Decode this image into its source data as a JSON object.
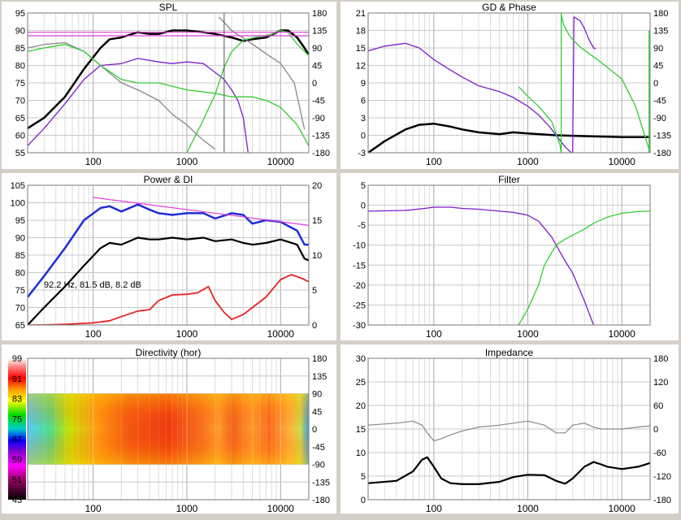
{
  "chart_data": [
    {
      "type": "line",
      "title": "SPL",
      "xscale": "log",
      "xlim": [
        20,
        20000
      ],
      "xticks": [
        "100",
        "1000",
        "10000"
      ],
      "ylim": [
        55,
        95
      ],
      "yticks": [
        "95",
        "90",
        "85",
        "80",
        "75",
        "70",
        "65",
        "60",
        "55"
      ],
      "y2lim": [
        -180,
        180
      ],
      "y2ticks": [
        "180",
        "135",
        "90",
        "45",
        "0",
        "-45",
        "-90",
        "-135",
        "-180"
      ],
      "cursor_x": 2500,
      "series": [
        {
          "color": "#000000",
          "width": 2.5,
          "axis": "y",
          "x": [
            20,
            30,
            50,
            80,
            120,
            150,
            200,
            300,
            400,
            500,
            700,
            1000,
            1500,
            2000,
            3000,
            4000,
            5000,
            7000,
            10000,
            12000,
            15000,
            18000,
            20000
          ],
          "y": [
            62,
            65,
            71,
            79,
            85,
            87.5,
            88,
            89.5,
            89,
            89,
            90,
            90,
            89.5,
            89,
            88,
            87,
            87.5,
            88,
            90,
            90,
            88,
            85,
            83
          ]
        },
        {
          "color": "#7b1fc9",
          "width": 1.3,
          "axis": "y",
          "x": [
            20,
            30,
            50,
            80,
            120,
            200,
            300,
            500,
            700,
            1000,
            1500,
            2000,
            2500,
            3000,
            3500,
            4000,
            4500
          ],
          "y": [
            57,
            62,
            69,
            76,
            80,
            80.5,
            82,
            81,
            80.5,
            81,
            80.5,
            78,
            76,
            73,
            70,
            65,
            55
          ]
        },
        {
          "color": "#888888",
          "width": 1.3,
          "axis": "y",
          "x": [
            20,
            30,
            50,
            80,
            120,
            200,
            300,
            500,
            700,
            1000,
            1300,
            1600,
            2000
          ],
          "y": [
            85,
            86,
            86.5,
            84,
            80,
            75,
            73,
            70,
            66,
            63,
            60,
            58,
            56
          ]
        },
        {
          "color": "#888888",
          "width": 1.3,
          "axis": "y2",
          "x": [
            2200,
            3000,
            5000,
            7000,
            10000,
            14000,
            18000
          ],
          "y": [
            170,
            135,
            100,
            75,
            50,
            0,
            -120
          ]
        },
        {
          "color": "#33cc33",
          "width": 1.3,
          "axis": "y",
          "x": [
            20,
            30,
            50,
            80,
            120,
            200,
            300,
            500,
            700,
            1000,
            2000,
            3000,
            5000,
            7000,
            10000,
            15000,
            20000
          ],
          "y": [
            84,
            85,
            86,
            84,
            80,
            76,
            75,
            75,
            74,
            73,
            72,
            71,
            71,
            70,
            68,
            63,
            57
          ]
        },
        {
          "color": "#33cc33",
          "width": 1.3,
          "axis": "y2",
          "x": [
            1000,
            1400,
            2000,
            2500,
            3000,
            4000,
            6000,
            8000,
            10000,
            12000,
            15000,
            20000
          ],
          "y": [
            -180,
            -110,
            -30,
            40,
            80,
            110,
            120,
            125,
            135,
            130,
            100,
            70
          ]
        },
        {
          "color": "#e23bd9",
          "width": 1.2,
          "axis": "y",
          "x": [
            20,
            20000
          ],
          "y": [
            89.5,
            89.5
          ]
        },
        {
          "color": "#e23bd9",
          "width": 1.2,
          "axis": "y",
          "x": [
            20,
            20000
          ],
          "y": [
            88.5,
            88.5
          ]
        }
      ]
    },
    {
      "type": "line",
      "title": "GD & Phase",
      "xscale": "log",
      "xlim": [
        20,
        20000
      ],
      "xticks": [
        "100",
        "1000",
        "10000"
      ],
      "ylim": [
        -3,
        21
      ],
      "yticks": [
        "21",
        "18",
        "15",
        "12",
        "9",
        "6",
        "3",
        "0",
        "-3"
      ],
      "y2lim": [
        -180,
        180
      ],
      "y2ticks": [
        "180",
        "135",
        "90",
        "45",
        "0",
        "-45",
        "-90",
        "-135",
        "-180"
      ],
      "series": [
        {
          "color": "#000000",
          "width": 2.5,
          "axis": "y",
          "x": [
            20,
            30,
            50,
            70,
            100,
            150,
            200,
            300,
            500,
            700,
            1000,
            2000,
            5000,
            10000,
            20000
          ],
          "y": [
            -3,
            -1,
            1,
            1.8,
            2,
            1.5,
            1,
            0.5,
            0.2,
            0.5,
            0.3,
            0,
            -0.2,
            -0.3,
            -0.3
          ]
        },
        {
          "color": "#7b1fc9",
          "width": 1.3,
          "axis": "y",
          "x": [
            20,
            30,
            50,
            70,
            100,
            150,
            200,
            300,
            500,
            700,
            1000,
            1300,
            1700,
            2000,
            2500,
            2900
          ],
          "y": [
            14.5,
            15.3,
            15.8,
            15,
            13,
            11.2,
            10,
            8.5,
            7.5,
            6.5,
            5,
            3.5,
            1.5,
            0,
            -2,
            -3
          ]
        },
        {
          "color": "#7b1fc9",
          "width": 1.3,
          "axis": "y2",
          "x": [
            3000,
            3100,
            3600,
            4000,
            4500,
            5000,
            5300
          ],
          "y": [
            -180,
            170,
            160,
            140,
            110,
            90,
            88
          ]
        },
        {
          "color": "#33cc33",
          "width": 1.3,
          "axis": "y2",
          "x": [
            2270,
            2400,
            2800,
            3500,
            4500,
            5500,
            7000,
            10000,
            14000,
            20000
          ],
          "y": [
            175,
            150,
            120,
            95,
            75,
            60,
            40,
            10,
            -60,
            -180
          ]
        },
        {
          "color": "#33cc33",
          "width": 1.3,
          "axis": "y2",
          "x": [
            800,
            1000,
            1300,
            1800,
            2200,
            2260
          ],
          "y": [
            -10,
            -35,
            -60,
            -100,
            -160,
            -180
          ]
        },
        {
          "color": "#33cc33",
          "width": 1.3,
          "axis": "y2",
          "x": [
            2265,
            2265
          ],
          "y": [
            -180,
            180
          ]
        },
        {
          "color": "#33cc33",
          "width": 1.3,
          "axis": "y2",
          "x": [
            19500,
            19500
          ],
          "y": [
            -180,
            135
          ]
        }
      ]
    },
    {
      "type": "line",
      "title": "Power & DI",
      "xscale": "log",
      "xlim": [
        20,
        20000
      ],
      "xticks": [
        "100",
        "1000",
        "10000"
      ],
      "ylim": [
        65,
        105
      ],
      "yticks": [
        "105",
        "100",
        "95",
        "90",
        "85",
        "80",
        "75",
        "70",
        "65"
      ],
      "y2lim": [
        0,
        20
      ],
      "y2ticks": [
        "20",
        "15",
        "10",
        "5",
        "0"
      ],
      "annotation": "92.2 Hz, 81.5 dB, 8.2 dB",
      "series": [
        {
          "color": "#1f2dd6",
          "width": 2.5,
          "axis": "y",
          "x": [
            20,
            30,
            50,
            80,
            120,
            150,
            200,
            300,
            400,
            500,
            700,
            1000,
            1500,
            2000,
            3000,
            4000,
            5000,
            7000,
            10000,
            15000,
            18000,
            20000
          ],
          "y": [
            73,
            79,
            87,
            95,
            98.5,
            99,
            97.5,
            99.5,
            98,
            97,
            96.5,
            97,
            97,
            95.5,
            97,
            96.5,
            94,
            95,
            94.5,
            92,
            88,
            88
          ]
        },
        {
          "color": "#000000",
          "width": 2.2,
          "axis": "y",
          "x": [
            20,
            30,
            50,
            80,
            120,
            150,
            200,
            300,
            400,
            500,
            700,
            1000,
            1500,
            2000,
            3000,
            4000,
            5000,
            7000,
            10000,
            15000,
            18000,
            20000
          ],
          "y": [
            65,
            70,
            76,
            82,
            87,
            88.5,
            88,
            90,
            89.5,
            89.5,
            90,
            89.5,
            90,
            89,
            89.5,
            88.5,
            88,
            88.5,
            89.5,
            88,
            84,
            83.5
          ]
        },
        {
          "color": "#e82121",
          "width": 1.8,
          "axis": "y2",
          "x": [
            20,
            30,
            50,
            100,
            150,
            200,
            300,
            400,
            500,
            700,
            1000,
            1300,
            1700,
            2000,
            2500,
            3000,
            4000,
            5000,
            7000,
            10000,
            13000,
            16000,
            20000
          ],
          "y": [
            0,
            0,
            0.1,
            0.3,
            0.6,
            1.2,
            2,
            2.2,
            3.5,
            4.3,
            4.4,
            4.6,
            5.5,
            3.5,
            1.8,
            0.8,
            1.5,
            2.5,
            4,
            6.5,
            7.2,
            6.8,
            6.2
          ]
        },
        {
          "color": "#e23bd9",
          "width": 1.2,
          "axis": "y",
          "x": [
            100,
            20000
          ],
          "y": [
            101.5,
            93.5
          ]
        }
      ]
    },
    {
      "type": "line",
      "title": "Filter",
      "xscale": "log",
      "xlim": [
        20,
        20000
      ],
      "xticks": [
        "100",
        "1000",
        "10000"
      ],
      "ylim": [
        -30,
        5
      ],
      "yticks": [
        "5",
        "0",
        "-5",
        "-10",
        "-15",
        "-20",
        "-25",
        "-30"
      ],
      "series": [
        {
          "color": "#7b1fc9",
          "width": 1.3,
          "x": [
            20,
            50,
            80,
            100,
            150,
            200,
            300,
            500,
            700,
            1000,
            1300,
            1800,
            2500,
            3000,
            4000,
            5000
          ],
          "y": [
            -1.5,
            -1.3,
            -0.8,
            -0.5,
            -0.5,
            -0.8,
            -1,
            -1.5,
            -1.8,
            -2.5,
            -4,
            -8,
            -14,
            -17,
            -24,
            -30
          ]
        },
        {
          "color": "#33cc33",
          "width": 1.3,
          "x": [
            800,
            1000,
            1300,
            1500,
            2000,
            2500,
            3000,
            4000,
            5000,
            7000,
            10000,
            15000,
            20000
          ],
          "y": [
            -30,
            -26,
            -20,
            -15,
            -10,
            -8.5,
            -7.5,
            -6,
            -4.5,
            -3,
            -2,
            -1.6,
            -1.5
          ]
        }
      ]
    },
    {
      "type": "heatmap",
      "title": "Directivity (hor)",
      "xscale": "log",
      "xlim": [
        20,
        20000
      ],
      "xticks": [
        "100",
        "1000",
        "10000"
      ],
      "y2lim": [
        -180,
        180
      ],
      "y2ticks": [
        "180",
        "135",
        "90",
        "45",
        "0",
        "-45",
        "-90",
        "-135",
        "-180"
      ],
      "colorbar": [
        "99",
        "91",
        "83",
        "75",
        "67",
        "59",
        "51",
        "43"
      ],
      "map_range": [
        -90,
        90
      ]
    },
    {
      "type": "line",
      "title": "Impedance",
      "xscale": "log",
      "xlim": [
        20,
        20000
      ],
      "xticks": [
        "100",
        "1000",
        "10000"
      ],
      "ylim": [
        0,
        30
      ],
      "yticks": [
        "30",
        "25",
        "20",
        "15",
        "10",
        "5",
        "0"
      ],
      "y2lim": [
        -180,
        180
      ],
      "y2ticks": [
        "180",
        "120",
        "60",
        "0",
        "-60",
        "-120",
        "-180"
      ],
      "series": [
        {
          "color": "#000000",
          "width": 2.2,
          "axis": "y",
          "x": [
            20,
            40,
            60,
            75,
            85,
            100,
            120,
            150,
            200,
            300,
            500,
            700,
            1000,
            1500,
            2000,
            2500,
            3000,
            4000,
            5000,
            6000,
            7000,
            10000,
            15000,
            20000
          ],
          "y": [
            3.5,
            4,
            6,
            8.5,
            9,
            7,
            4.5,
            3.5,
            3.3,
            3.3,
            3.8,
            4.8,
            5.3,
            5.2,
            4,
            3.4,
            4.5,
            7,
            8,
            7.5,
            7,
            6.5,
            7,
            7.8
          ]
        },
        {
          "color": "#888888",
          "width": 1.2,
          "axis": "y2",
          "x": [
            20,
            40,
            60,
            75,
            85,
            100,
            120,
            150,
            200,
            300,
            500,
            700,
            1000,
            1500,
            2000,
            2500,
            3000,
            4000,
            5000,
            6000,
            7000,
            10000,
            15000,
            20000
          ],
          "y": [
            10,
            15,
            20,
            10,
            -10,
            -30,
            -25,
            -15,
            -5,
            5,
            10,
            15,
            20,
            10,
            -10,
            -10,
            10,
            15,
            5,
            0,
            0,
            0,
            5,
            8
          ]
        }
      ]
    }
  ]
}
